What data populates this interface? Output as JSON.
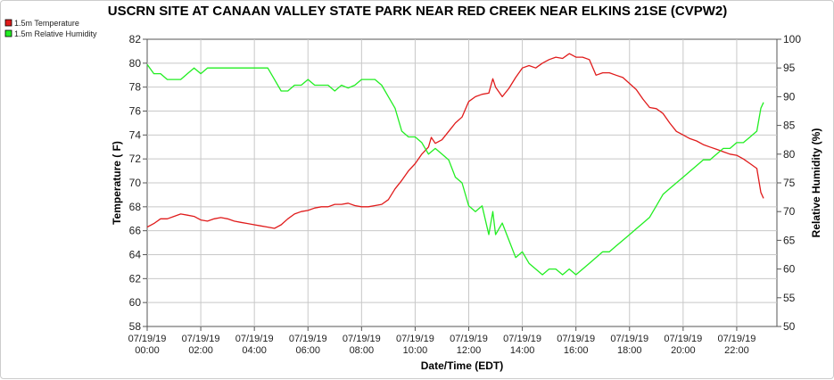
{
  "chart_data": {
    "type": "line",
    "title": "USCRN SITE AT CANAAN VALLEY STATE PARK NEAR RED CREEK NEAR ELKINS 21SE (CVPW2)",
    "xlabel": "Date/Time (EDT)",
    "ylabel_left": "Temperature ( F)",
    "ylabel_right": "Relative Humidity (%)",
    "ylim_left": [
      58,
      82
    ],
    "ylim_right": [
      50,
      100
    ],
    "xlim_hours": [
      0,
      23.5
    ],
    "x_ticks": [
      {
        "hour": 0,
        "date": "07/19/19",
        "time": "00:00"
      },
      {
        "hour": 2,
        "date": "07/19/19",
        "time": "02:00"
      },
      {
        "hour": 4,
        "date": "07/19/19",
        "time": "04:00"
      },
      {
        "hour": 6,
        "date": "07/19/19",
        "time": "06:00"
      },
      {
        "hour": 8,
        "date": "07/19/19",
        "time": "08:00"
      },
      {
        "hour": 10,
        "date": "07/19/19",
        "time": "10:00"
      },
      {
        "hour": 12,
        "date": "07/19/19",
        "time": "12:00"
      },
      {
        "hour": 14,
        "date": "07/19/19",
        "time": "14:00"
      },
      {
        "hour": 16,
        "date": "07/19/19",
        "time": "16:00"
      },
      {
        "hour": 18,
        "date": "07/19/19",
        "time": "18:00"
      },
      {
        "hour": 20,
        "date": "07/19/19",
        "time": "20:00"
      },
      {
        "hour": 22,
        "date": "07/19/19",
        "time": "22:00"
      }
    ],
    "y_ticks_left": [
      58,
      60,
      62,
      64,
      66,
      68,
      70,
      72,
      74,
      76,
      78,
      80,
      82
    ],
    "y_ticks_right": [
      50,
      55,
      60,
      65,
      70,
      75,
      80,
      85,
      90,
      95,
      100
    ],
    "grid": true,
    "legend_position": "top-left",
    "series": [
      {
        "name": "1.5m Temperature",
        "color": "#e01b1b",
        "axis": "left",
        "points": [
          [
            0.0,
            66.3
          ],
          [
            0.25,
            66.6
          ],
          [
            0.5,
            67.0
          ],
          [
            0.75,
            67.0
          ],
          [
            1.0,
            67.2
          ],
          [
            1.25,
            67.4
          ],
          [
            1.5,
            67.3
          ],
          [
            1.75,
            67.2
          ],
          [
            2.0,
            66.9
          ],
          [
            2.25,
            66.8
          ],
          [
            2.5,
            67.0
          ],
          [
            2.75,
            67.1
          ],
          [
            3.0,
            67.0
          ],
          [
            3.25,
            66.8
          ],
          [
            3.5,
            66.7
          ],
          [
            3.75,
            66.6
          ],
          [
            4.0,
            66.5
          ],
          [
            4.25,
            66.4
          ],
          [
            4.5,
            66.3
          ],
          [
            4.75,
            66.2
          ],
          [
            5.0,
            66.5
          ],
          [
            5.25,
            67.0
          ],
          [
            5.5,
            67.4
          ],
          [
            5.75,
            67.6
          ],
          [
            6.0,
            67.7
          ],
          [
            6.25,
            67.9
          ],
          [
            6.5,
            68.0
          ],
          [
            6.75,
            68.0
          ],
          [
            7.0,
            68.2
          ],
          [
            7.25,
            68.2
          ],
          [
            7.5,
            68.3
          ],
          [
            7.75,
            68.1
          ],
          [
            8.0,
            68.0
          ],
          [
            8.25,
            68.0
          ],
          [
            8.5,
            68.1
          ],
          [
            8.75,
            68.2
          ],
          [
            9.0,
            68.6
          ],
          [
            9.25,
            69.5
          ],
          [
            9.5,
            70.2
          ],
          [
            9.75,
            71.0
          ],
          [
            10.0,
            71.6
          ],
          [
            10.25,
            72.4
          ],
          [
            10.5,
            73.0
          ],
          [
            10.6,
            73.8
          ],
          [
            10.75,
            73.3
          ],
          [
            11.0,
            73.6
          ],
          [
            11.25,
            74.3
          ],
          [
            11.5,
            75.0
          ],
          [
            11.75,
            75.5
          ],
          [
            12.0,
            76.8
          ],
          [
            12.25,
            77.2
          ],
          [
            12.5,
            77.4
          ],
          [
            12.75,
            77.5
          ],
          [
            12.9,
            78.7
          ],
          [
            13.0,
            78.0
          ],
          [
            13.25,
            77.2
          ],
          [
            13.5,
            77.9
          ],
          [
            13.75,
            78.8
          ],
          [
            14.0,
            79.6
          ],
          [
            14.25,
            79.8
          ],
          [
            14.5,
            79.6
          ],
          [
            14.75,
            80.0
          ],
          [
            15.0,
            80.3
          ],
          [
            15.25,
            80.5
          ],
          [
            15.5,
            80.4
          ],
          [
            15.75,
            80.8
          ],
          [
            16.0,
            80.5
          ],
          [
            16.25,
            80.5
          ],
          [
            16.5,
            80.3
          ],
          [
            16.75,
            79.0
          ],
          [
            17.0,
            79.2
          ],
          [
            17.25,
            79.2
          ],
          [
            17.5,
            79.0
          ],
          [
            17.75,
            78.8
          ],
          [
            18.0,
            78.3
          ],
          [
            18.25,
            77.8
          ],
          [
            18.5,
            77.0
          ],
          [
            18.75,
            76.3
          ],
          [
            19.0,
            76.2
          ],
          [
            19.25,
            75.8
          ],
          [
            19.5,
            75.0
          ],
          [
            19.75,
            74.3
          ],
          [
            20.0,
            74.0
          ],
          [
            20.25,
            73.7
          ],
          [
            20.5,
            73.5
          ],
          [
            20.75,
            73.2
          ],
          [
            21.0,
            73.0
          ],
          [
            21.25,
            72.8
          ],
          [
            21.5,
            72.6
          ],
          [
            21.75,
            72.4
          ],
          [
            22.0,
            72.3
          ],
          [
            22.25,
            72.0
          ],
          [
            22.5,
            71.6
          ],
          [
            22.75,
            71.2
          ],
          [
            22.9,
            69.2
          ],
          [
            23.0,
            68.7
          ]
        ]
      },
      {
        "name": "1.5m Relative Humidity",
        "color": "#22ee22",
        "axis": "right",
        "points": [
          [
            0.0,
            95.6
          ],
          [
            0.25,
            94.0
          ],
          [
            0.5,
            94.0
          ],
          [
            0.75,
            93.0
          ],
          [
            1.0,
            93.0
          ],
          [
            1.25,
            93.0
          ],
          [
            1.5,
            94.0
          ],
          [
            1.75,
            95.0
          ],
          [
            2.0,
            94.0
          ],
          [
            2.25,
            95.0
          ],
          [
            2.5,
            95.0
          ],
          [
            2.75,
            95.0
          ],
          [
            3.0,
            95.0
          ],
          [
            3.25,
            95.0
          ],
          [
            3.5,
            95.0
          ],
          [
            3.75,
            95.0
          ],
          [
            4.0,
            95.0
          ],
          [
            4.25,
            95.0
          ],
          [
            4.5,
            95.0
          ],
          [
            4.75,
            93.0
          ],
          [
            5.0,
            91.0
          ],
          [
            5.25,
            91.0
          ],
          [
            5.5,
            92.0
          ],
          [
            5.75,
            92.0
          ],
          [
            6.0,
            93.0
          ],
          [
            6.25,
            92.0
          ],
          [
            6.5,
            92.0
          ],
          [
            6.75,
            92.0
          ],
          [
            7.0,
            91.0
          ],
          [
            7.25,
            92.0
          ],
          [
            7.5,
            91.5
          ],
          [
            7.75,
            92.0
          ],
          [
            8.0,
            93.0
          ],
          [
            8.25,
            93.0
          ],
          [
            8.5,
            93.0
          ],
          [
            8.75,
            92.0
          ],
          [
            9.0,
            90.0
          ],
          [
            9.25,
            88.0
          ],
          [
            9.5,
            84.0
          ],
          [
            9.75,
            83.0
          ],
          [
            10.0,
            83.0
          ],
          [
            10.25,
            82.0
          ],
          [
            10.5,
            80.0
          ],
          [
            10.75,
            81.0
          ],
          [
            11.0,
            80.0
          ],
          [
            11.25,
            79.0
          ],
          [
            11.5,
            76.0
          ],
          [
            11.75,
            75.0
          ],
          [
            12.0,
            71.0
          ],
          [
            12.25,
            70.0
          ],
          [
            12.5,
            71.0
          ],
          [
            12.75,
            66.0
          ],
          [
            12.9,
            70.0
          ],
          [
            13.0,
            66.0
          ],
          [
            13.25,
            68.0
          ],
          [
            13.5,
            65.0
          ],
          [
            13.75,
            62.0
          ],
          [
            14.0,
            63.0
          ],
          [
            14.25,
            61.0
          ],
          [
            14.5,
            60.0
          ],
          [
            14.75,
            59.0
          ],
          [
            15.0,
            60.0
          ],
          [
            15.25,
            60.0
          ],
          [
            15.5,
            59.0
          ],
          [
            15.75,
            60.0
          ],
          [
            16.0,
            59.0
          ],
          [
            16.25,
            60.0
          ],
          [
            16.5,
            61.0
          ],
          [
            16.75,
            62.0
          ],
          [
            17.0,
            63.0
          ],
          [
            17.25,
            63.0
          ],
          [
            17.5,
            64.0
          ],
          [
            17.75,
            65.0
          ],
          [
            18.0,
            66.0
          ],
          [
            18.25,
            67.0
          ],
          [
            18.5,
            68.0
          ],
          [
            18.75,
            69.0
          ],
          [
            19.0,
            71.0
          ],
          [
            19.25,
            73.0
          ],
          [
            19.5,
            74.0
          ],
          [
            19.75,
            75.0
          ],
          [
            20.0,
            76.0
          ],
          [
            20.25,
            77.0
          ],
          [
            20.5,
            78.0
          ],
          [
            20.75,
            79.0
          ],
          [
            21.0,
            79.0
          ],
          [
            21.25,
            80.0
          ],
          [
            21.5,
            81.0
          ],
          [
            21.75,
            81.0
          ],
          [
            22.0,
            82.0
          ],
          [
            22.25,
            82.0
          ],
          [
            22.5,
            83.0
          ],
          [
            22.75,
            84.0
          ],
          [
            22.9,
            88.0
          ],
          [
            23.0,
            89.0
          ]
        ]
      }
    ]
  }
}
